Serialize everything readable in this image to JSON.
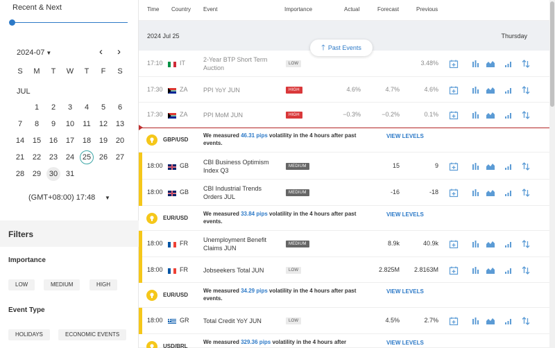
{
  "sidebar": {
    "recent_label": "Recent & Next",
    "calendar": {
      "month_select": "2024-07",
      "weekdays": [
        "S",
        "M",
        "T",
        "W",
        "T",
        "F",
        "S"
      ],
      "month_label": "JUL",
      "days": [
        1,
        2,
        3,
        4,
        5,
        6,
        7,
        8,
        9,
        10,
        11,
        12,
        13,
        14,
        15,
        16,
        17,
        18,
        19,
        20,
        21,
        22,
        23,
        24,
        25,
        26,
        27,
        28,
        29,
        30,
        31
      ],
      "today": 25,
      "selected": 30
    },
    "timezone": "(GMT+08:00) 17:48",
    "filters_title": "Filters",
    "importance_title": "Importance",
    "importance_chips": [
      "LOW",
      "MEDIUM",
      "HIGH"
    ],
    "event_type_title": "Event Type",
    "event_type_chips": [
      "HOLIDAYS",
      "ECONOMIC EVENTS"
    ]
  },
  "table": {
    "headers": {
      "time": "Time",
      "country": "Country",
      "event": "Event",
      "importance": "Importance",
      "actual": "Actual",
      "forecast": "Forecast",
      "previous": "Previous"
    },
    "date": "2024 Jul 25",
    "weekday": "Thursday",
    "past_events_button": "Past Events",
    "rows": [
      {
        "time": "17:10",
        "country": "IT",
        "event": "2-Year BTP Short Term Auction",
        "importance": "LOW",
        "actual": "",
        "forecast": "",
        "previous": "3.48%"
      },
      {
        "time": "17:30",
        "country": "ZA",
        "event": "PPI YoY JUN",
        "importance": "HIGH",
        "actual": "4.6%",
        "forecast": "4.7%",
        "previous": "4.6%"
      },
      {
        "time": "17:30",
        "country": "ZA",
        "event": "PPI MoM JUN",
        "importance": "HIGH",
        "actual": "−0.3%",
        "forecast": "−0.2%",
        "previous": "0.1%"
      },
      {
        "time": "18:00",
        "country": "GB",
        "event": "CBI Business Optimism Index Q3",
        "importance": "MEDIUM",
        "actual": "",
        "forecast": "15",
        "previous": "9"
      },
      {
        "time": "18:00",
        "country": "GB",
        "event": "CBI Industrial Trends Orders JUL",
        "importance": "MEDIUM",
        "actual": "",
        "forecast": "-16",
        "previous": "-18"
      },
      {
        "time": "18:00",
        "country": "FR",
        "event": "Unemployment Benefit Claims JUN",
        "importance": "MEDIUM",
        "actual": "",
        "forecast": "8.9k",
        "previous": "40.9k"
      },
      {
        "time": "18:00",
        "country": "FR",
        "event": "Jobseekers Total JUN",
        "importance": "LOW",
        "actual": "",
        "forecast": "2.825M",
        "previous": "2.8163M"
      },
      {
        "time": "18:00",
        "country": "GR",
        "event": "Total Credit YoY JUN",
        "importance": "LOW",
        "actual": "",
        "forecast": "4.5%",
        "previous": "2.7%"
      }
    ],
    "volatility": [
      {
        "pair": "GBP/USD",
        "prefix": "We measured ",
        "pips": "46.31 pips",
        "suffix": " volatility in the 4 hours after past events.",
        "link": "VIEW LEVELS"
      },
      {
        "pair": "EUR/USD",
        "prefix": "We measured ",
        "pips": "33.84 pips",
        "suffix": " volatility in the 4 hours after past events.",
        "link": "VIEW LEVELS"
      },
      {
        "pair": "EUR/USD",
        "prefix": "We measured ",
        "pips": "34.29 pips",
        "suffix": " volatility in the 4 hours after past events.",
        "link": "VIEW LEVELS"
      },
      {
        "pair": "USD/BRL",
        "prefix": "We measured ",
        "pips": "329.36 pips",
        "suffix": " volatility in the 4 hours after",
        "link": "VIEW LEVELS"
      }
    ],
    "row_icons": [
      "calendar-add-icon",
      "bar-chart-icon",
      "area-chart-icon",
      "signal-bars-icon",
      "sort-arrows-icon"
    ]
  },
  "colors": {
    "accent": "#2c79c7",
    "high": "#d9383a",
    "medium": "#666666",
    "volatility": "#f5c71a",
    "now_line": "#c03030"
  }
}
